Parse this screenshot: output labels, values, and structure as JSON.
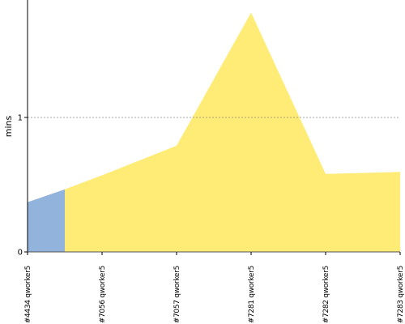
{
  "chart_data": {
    "type": "area",
    "ylabel": "mins",
    "ylim": [
      0,
      1.8
    ],
    "yticks": [
      0,
      1
    ],
    "reference_line": 1,
    "categories": [
      "#4434 qworker5",
      "#7056 qworker5",
      "#7057 qworker5",
      "#7281 qworker5",
      "#7282 qworker5",
      "#7283 qworker5"
    ],
    "series": [
      {
        "color": "#92b4dc",
        "points": [
          [
            0,
            0.37
          ],
          [
            0.5,
            0.465
          ]
        ]
      },
      {
        "color": "#feec77",
        "points": [
          [
            0.5,
            0.465
          ],
          [
            1,
            0.57
          ],
          [
            2,
            0.79
          ],
          [
            3,
            1.78
          ],
          [
            4,
            0.58
          ],
          [
            5,
            0.595
          ]
        ]
      }
    ]
  }
}
